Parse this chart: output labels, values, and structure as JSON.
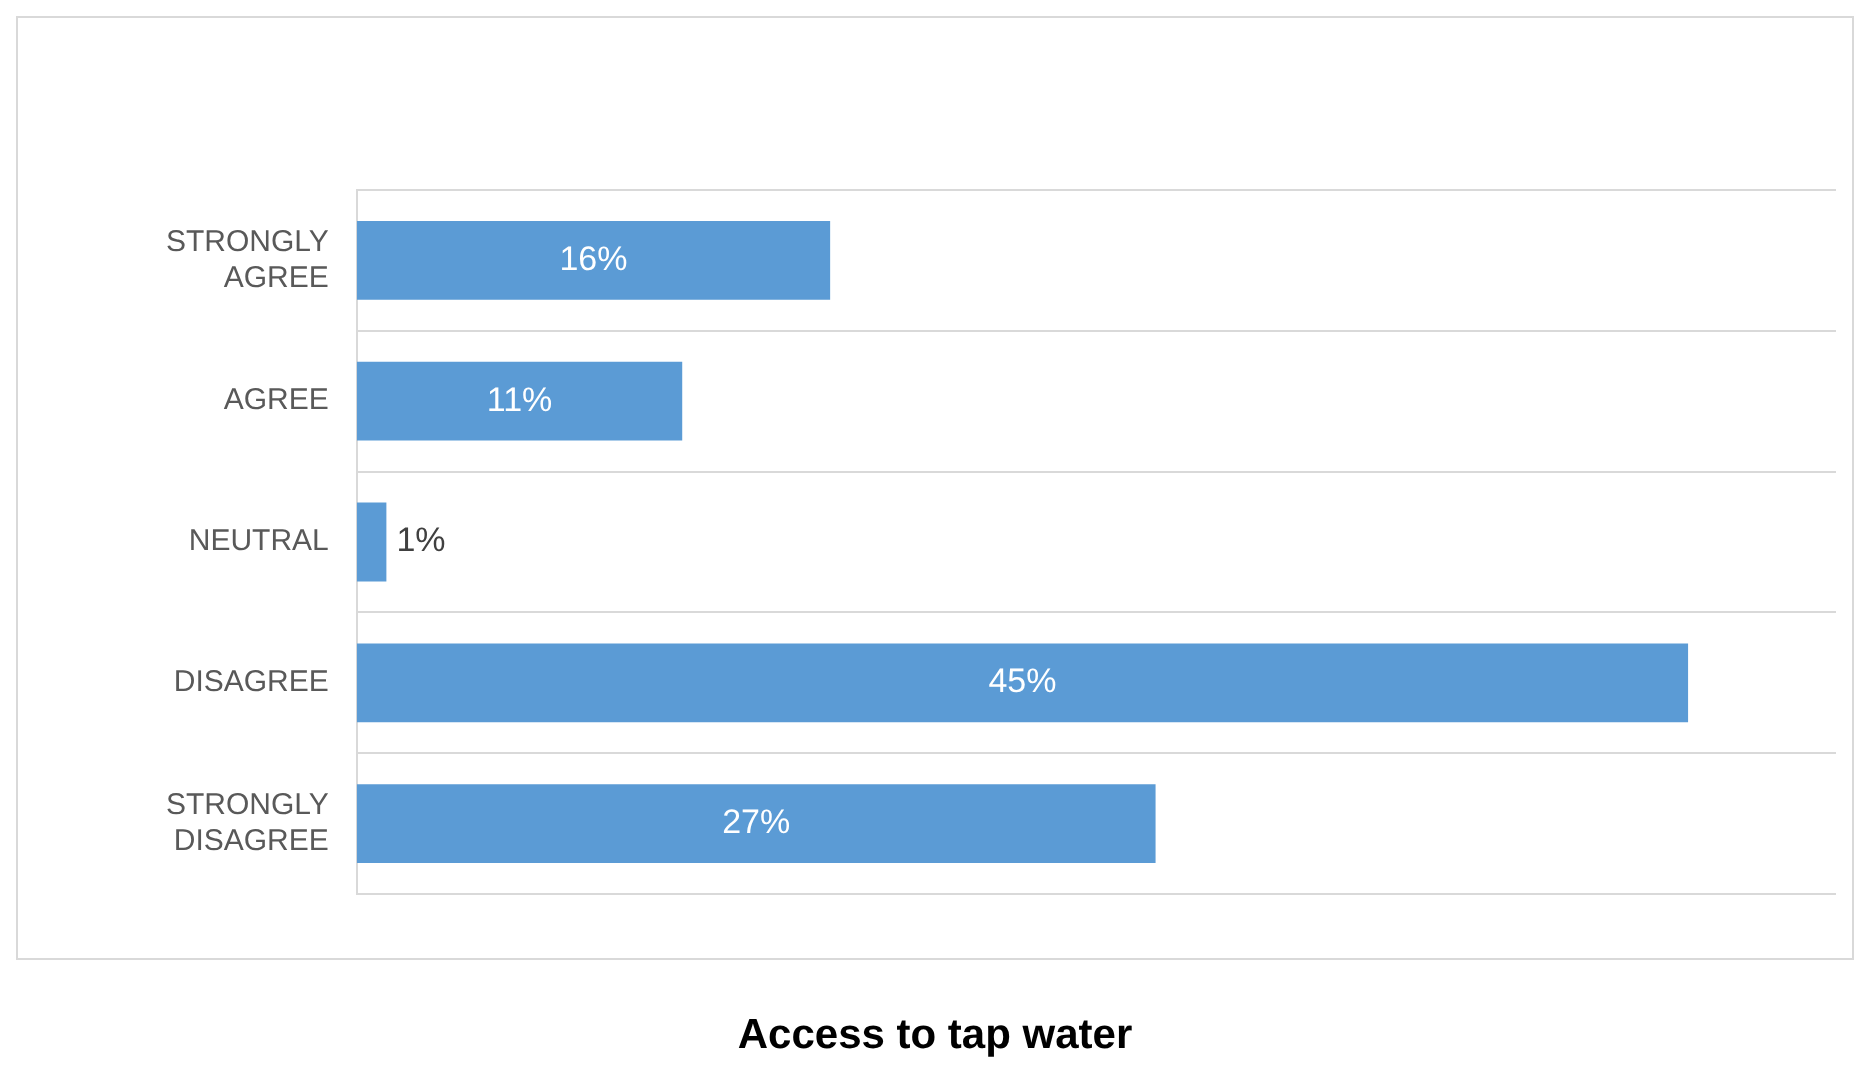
{
  "chart_data": {
    "type": "bar",
    "orientation": "horizontal",
    "title": "Access to tap water",
    "categories": [
      "STRONGLY AGREE",
      "AGREE",
      "NEUTRAL",
      "DISAGREE",
      "STRONGLY DISAGREE"
    ],
    "values": [
      16,
      11,
      1,
      45,
      27
    ],
    "color": "#5b9bd5",
    "data_labels": true,
    "value_labels": [
      "16%",
      "11%",
      "1%",
      "45%",
      "27%"
    ],
    "grid": "y",
    "legend": false,
    "tick_labels": "y"
  }
}
